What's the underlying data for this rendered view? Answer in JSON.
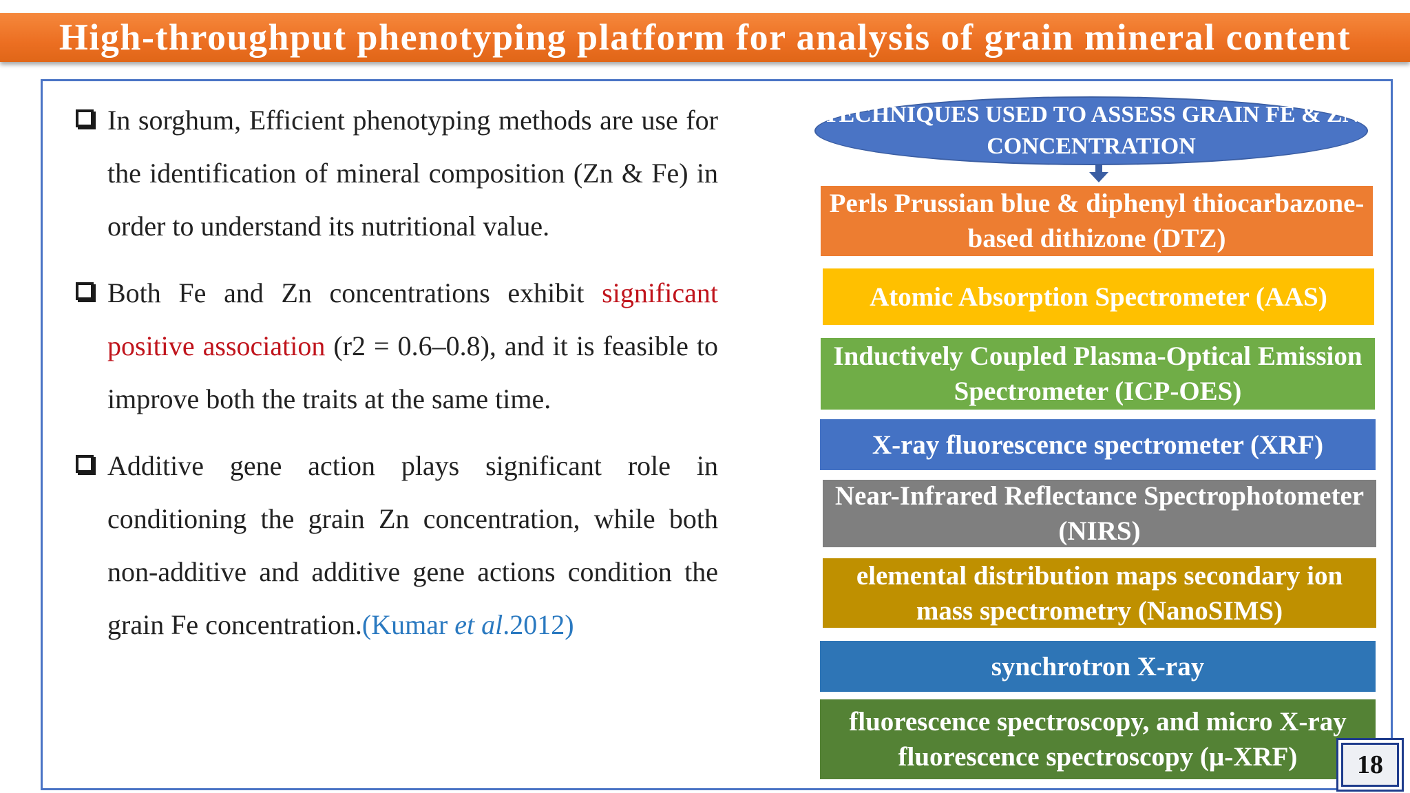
{
  "title": "High-throughput phenotyping platform for analysis of grain mineral content",
  "bullets": {
    "b1": "In sorghum, Efficient phenotyping methods are use for the identification of mineral composition (Zn & Fe) in order to understand its nutritional value.",
    "b2_pre": "Both Fe and Zn concentrations exhibit ",
    "b2_highlight": "significant positive association",
    "b2_post": " (r2 = 0.6–0.8), and it is feasible to improve both the traits at the same time.",
    "b3_text": "Additive gene action plays significant role in conditioning the grain Zn concentration, while both non-additive and additive gene actions condition the grain Fe concentration.",
    "b3_cite_open": "(Kumar ",
    "b3_cite_italic": "et al",
    "b3_cite_close": ".2012)"
  },
  "techniques_header": "TECHNIQUES USED TO ASSESS GRAIN FE & ZN CONCENTRATION",
  "techniques": [
    {
      "label": "Perls Prussian blue & diphenyl thiocarbazone-based dithizone (DTZ)",
      "color": "#ed7d31"
    },
    {
      "label": "Atomic Absorption Spectrometer (AAS)",
      "color": "#ffc000"
    },
    {
      "label": "Inductively Coupled Plasma-Optical Emission Spectrometer (ICP-OES)",
      "color": "#70ad47"
    },
    {
      "label": "X-ray fluorescence spectrometer (XRF)",
      "color": "#4472c4"
    },
    {
      "label": "Near-Infrared Reflectance Spectrophotometer (NIRS)",
      "color": "#7f7f7f"
    },
    {
      "label": "elemental distribution maps secondary ion mass spectrometry (NanoSIMS)",
      "color": "#bf9000"
    },
    {
      "label": "synchrotron X-ray",
      "color": "#2e75b6"
    },
    {
      "label": "fluorescence spectroscopy, and micro X-ray fluorescence spectroscopy (µ-XRF)",
      "color": "#548235"
    }
  ],
  "page_number": "18"
}
